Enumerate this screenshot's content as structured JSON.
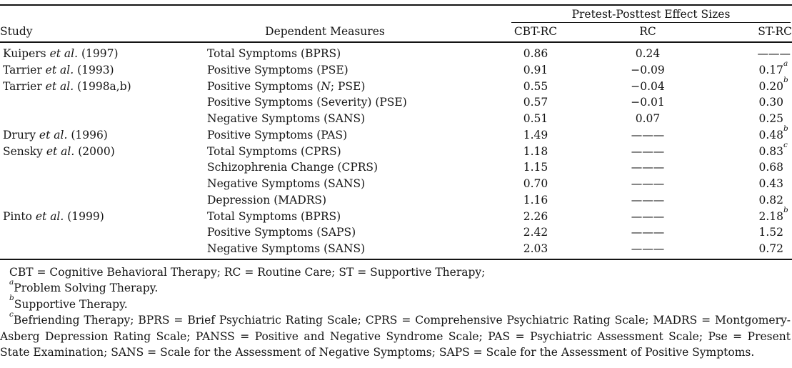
{
  "table": {
    "span_header": "Pretest-Posttest Effect Sizes",
    "columns": {
      "study": "Study",
      "measures": "Dependent Measures",
      "cbt_rc": "CBT-RC",
      "rc": "RC",
      "st_rc": "ST-RC"
    },
    "dash": "———",
    "rows": [
      {
        "study": [
          {
            "t": "Kuipers "
          },
          {
            "t": "et al.",
            "i": true
          },
          {
            "t": " (1997)"
          }
        ],
        "measure": [
          {
            "t": "Total Symptoms (BPRS)"
          }
        ],
        "cbt_rc": "0.86",
        "rc": "0.24",
        "st_rc": "———",
        "st_sup": ""
      },
      {
        "study": [
          {
            "t": "Tarrier "
          },
          {
            "t": "et al.",
            "i": true
          },
          {
            "t": " (1993)"
          }
        ],
        "measure": [
          {
            "t": "Positive Symptoms (PSE)"
          }
        ],
        "cbt_rc": "0.91",
        "rc": "−0.09",
        "st_rc": "0.17",
        "st_sup": "a"
      },
      {
        "study": [
          {
            "t": "Tarrier "
          },
          {
            "t": "et al.",
            "i": true
          },
          {
            "t": " (1998a,b)"
          }
        ],
        "measure": [
          {
            "t": "Positive Symptoms ("
          },
          {
            "t": "N",
            "i": true
          },
          {
            "t": "; PSE)"
          }
        ],
        "cbt_rc": "0.55",
        "rc": "−0.04",
        "st_rc": "0.20",
        "st_sup": "b"
      },
      {
        "study": [],
        "measure": [
          {
            "t": "Positive Symptoms (Severity) (PSE)"
          }
        ],
        "cbt_rc": "0.57",
        "rc": "−0.01",
        "st_rc": "0.30",
        "st_sup": ""
      },
      {
        "study": [],
        "measure": [
          {
            "t": "Negative Symptoms (SANS)"
          }
        ],
        "cbt_rc": "0.51",
        "rc": "0.07",
        "st_rc": "0.25",
        "st_sup": ""
      },
      {
        "study": [
          {
            "t": "Drury "
          },
          {
            "t": "et al.",
            "i": true
          },
          {
            "t": " (1996)"
          }
        ],
        "measure": [
          {
            "t": "Positive Symptoms (PAS)"
          }
        ],
        "cbt_rc": "1.49",
        "rc": "———",
        "st_rc": "0.48",
        "st_sup": "b"
      },
      {
        "study": [
          {
            "t": "Sensky "
          },
          {
            "t": "et al.",
            "i": true
          },
          {
            "t": " (2000)"
          }
        ],
        "measure": [
          {
            "t": "Total Symptoms (CPRS)"
          }
        ],
        "cbt_rc": "1.18",
        "rc": "———",
        "st_rc": "0.83",
        "st_sup": "c"
      },
      {
        "study": [],
        "measure": [
          {
            "t": "Schizophrenia Change (CPRS)"
          }
        ],
        "cbt_rc": "1.15",
        "rc": "———",
        "st_rc": "0.68",
        "st_sup": ""
      },
      {
        "study": [],
        "measure": [
          {
            "t": "Negative Symptoms (SANS)"
          }
        ],
        "cbt_rc": "0.70",
        "rc": "———",
        "st_rc": "0.43",
        "st_sup": ""
      },
      {
        "study": [],
        "measure": [
          {
            "t": "Depression (MADRS)"
          }
        ],
        "cbt_rc": "1.16",
        "rc": "———",
        "st_rc": "0.82",
        "st_sup": ""
      },
      {
        "study": [
          {
            "t": "Pinto "
          },
          {
            "t": "et al.",
            "i": true
          },
          {
            "t": " (1999)"
          }
        ],
        "measure": [
          {
            "t": "Total Symptoms (BPRS)"
          }
        ],
        "cbt_rc": "2.26",
        "rc": "———",
        "st_rc": "2.18",
        "st_sup": "b"
      },
      {
        "study": [],
        "measure": [
          {
            "t": "Positive Symptoms (SAPS)"
          }
        ],
        "cbt_rc": "2.42",
        "rc": "———",
        "st_rc": "1.52",
        "st_sup": ""
      },
      {
        "study": [],
        "measure": [
          {
            "t": "Negative Symptoms (SANS)"
          }
        ],
        "cbt_rc": "2.03",
        "rc": "———",
        "st_rc": "0.72",
        "st_sup": ""
      }
    ]
  },
  "footnotes": {
    "general": "CBT = Cognitive Behavioral Therapy; RC = Routine Care; ST = Supportive Therapy;",
    "a": {
      "marker": "a",
      "text": "Problem Solving Therapy."
    },
    "b": {
      "marker": "b",
      "text": "Supportive Therapy."
    },
    "c": {
      "marker": "c",
      "text": "Befriending Therapy; BPRS = Brief Psychiatric Rating Scale; CPRS = Comprehensive Psychiatric Rating Scale; MADRS = Montgomery-Asberg Depression Rating Scale; PANSS = Positive and Negative Syndrome Scale; PAS = Psychiatric Assessment Scale; Pse = Present State Examination; SANS = Scale for the Assessment of Negative Symptoms; SAPS = Scale for the Assessment of Positive Symptoms."
    }
  }
}
